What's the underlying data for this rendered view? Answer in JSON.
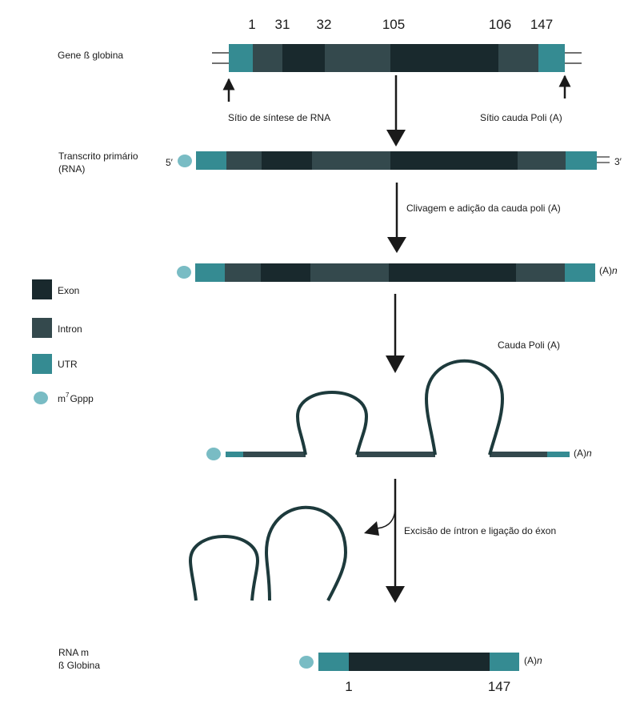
{
  "colors": {
    "exon": "#19292d",
    "intron": "#34494d",
    "utr": "#358b92",
    "cap": "#79bcc4",
    "line": "#1a1a1a",
    "loop": "#1d3a3c"
  },
  "gene": {
    "label": "Gene ß globina",
    "positions": [
      "1",
      "31",
      "32",
      "105",
      "106",
      "147"
    ],
    "rna_start_site": "Sítio de síntese de RNA",
    "polya_site": "Sítio cauda Poli (A)"
  },
  "primary_transcript": {
    "label_line1": "Transcrito primário",
    "label_line2": "(RNA)",
    "five_prime": "5′",
    "three_prime": "3′"
  },
  "step1": {
    "label": "Clivagem e adição da cauda poli (A)"
  },
  "polyadenylated": {
    "tail": "(A)",
    "tail_n": "n"
  },
  "legend": {
    "exon": "Exon",
    "intron": "Intron",
    "utr": "UTR",
    "cap_prefix": "m",
    "cap_sup": "7",
    "cap_suffix": "Gppp"
  },
  "loops_stage": {
    "polya_label": "Cauda Poli (A)",
    "tail": "(A)",
    "tail_n": "n"
  },
  "step2": {
    "label": "Excisão de íntron e ligação do éxon"
  },
  "mrna": {
    "label_line1": "RNA m",
    "label_line2": "ß Globina",
    "start": "1",
    "end": "147",
    "tail": "(A)",
    "tail_n": "n"
  }
}
